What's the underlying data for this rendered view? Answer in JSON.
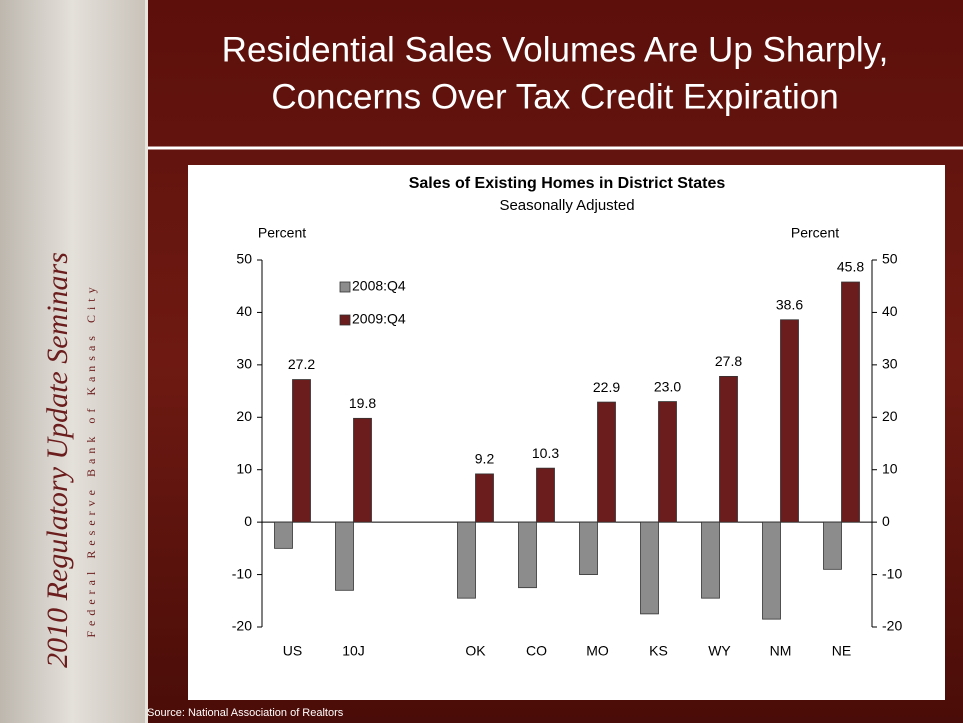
{
  "slide": {
    "title_lines": [
      "Residential Sales Volumes Are Up Sharply,",
      "Concerns Over Tax Credit Expiration"
    ],
    "banner_title": "2010 Regulatory Update Seminars",
    "banner_subtitle": "Federal Reserve Bank of Kansas City",
    "source": "Source: National Association of Realtors"
  },
  "chart_data": {
    "type": "bar",
    "title": "Sales of Existing Homes in District States",
    "subtitle": "Seasonally Adjusted",
    "ylabel": "Percent",
    "y2label": "Percent",
    "categories": [
      "US",
      "10J",
      null,
      "OK",
      "CO",
      "MO",
      "KS",
      "WY",
      "NM",
      "NE"
    ],
    "series": [
      {
        "name": "2008:Q4",
        "color": "#8c8c8c",
        "values": [
          -5,
          -13,
          null,
          -14.5,
          -12.5,
          -10,
          -17.5,
          -14.5,
          -18.5,
          -9
        ]
      },
      {
        "name": "2009:Q4",
        "color": "#6b1c1c",
        "values": [
          27.2,
          19.8,
          null,
          9.2,
          10.3,
          22.9,
          23.0,
          27.8,
          38.6,
          45.8
        ],
        "value_labels": [
          "27.2",
          "19.8",
          null,
          "9.2",
          "10.3",
          "22.9",
          "23.0",
          "27.8",
          "38.6",
          "45.8"
        ]
      }
    ],
    "ylim": [
      -20,
      50
    ],
    "yticks": [
      -20,
      -10,
      0,
      10,
      20,
      30,
      40,
      50
    ],
    "y2lim": [
      -20,
      50
    ],
    "y2ticks": [
      -20,
      -10,
      0,
      10,
      20,
      30,
      40,
      50
    ],
    "legend": "upper left",
    "grid": false
  }
}
